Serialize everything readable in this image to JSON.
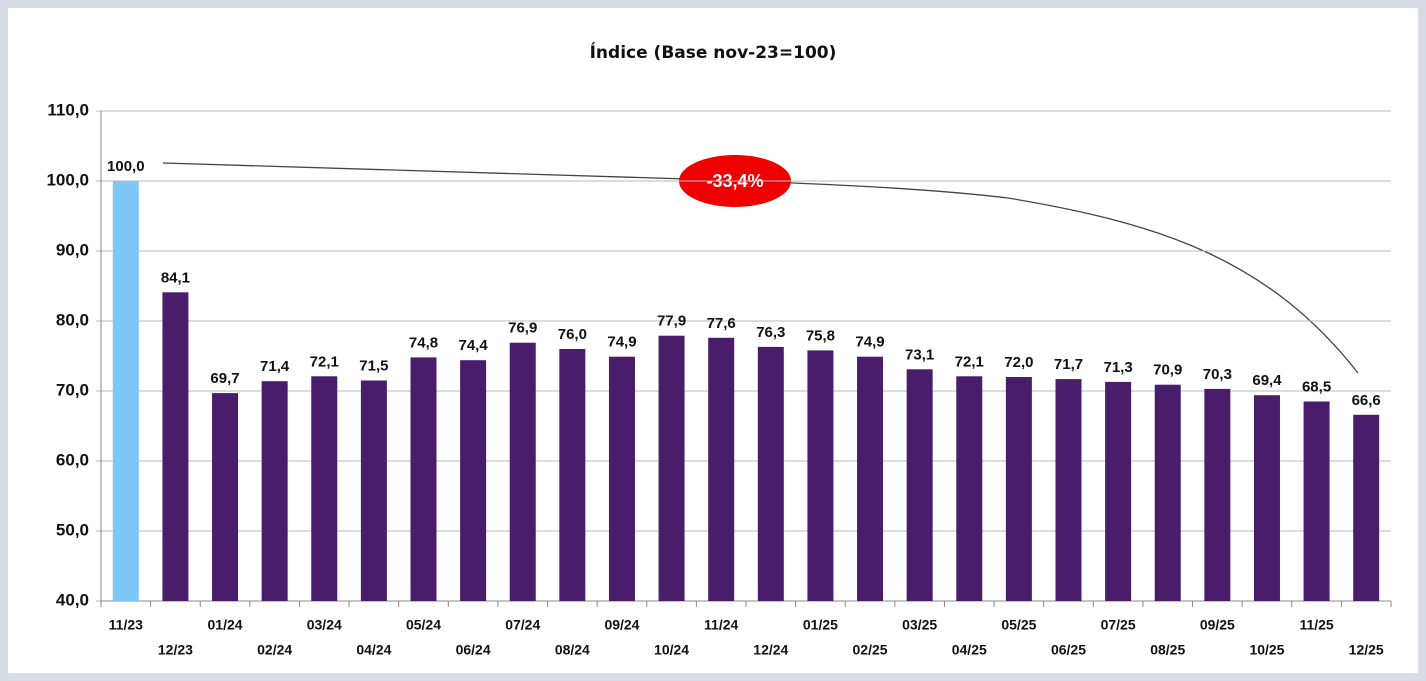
{
  "chart_data": {
    "type": "bar",
    "title": "Índice (Base nov-23=100)",
    "categories": [
      "11/23",
      "12/23",
      "01/24",
      "02/24",
      "03/24",
      "04/24",
      "05/24",
      "06/24",
      "07/24",
      "08/24",
      "09/24",
      "10/24",
      "11/24",
      "12/24",
      "01/25",
      "02/25",
      "03/25",
      "04/25",
      "05/25",
      "06/25",
      "07/25",
      "08/25",
      "09/25",
      "10/25",
      "11/25",
      "12/25"
    ],
    "values": [
      100.0,
      84.1,
      69.7,
      71.4,
      72.1,
      71.5,
      74.8,
      74.4,
      76.9,
      76.0,
      74.9,
      77.9,
      77.6,
      76.3,
      75.8,
      74.9,
      73.1,
      72.1,
      72.0,
      71.7,
      71.3,
      70.9,
      70.3,
      69.4,
      68.5,
      66.6
    ],
    "value_labels": [
      "100,0",
      "84,1",
      "69,7",
      "71,4",
      "72,1",
      "71,5",
      "74,8",
      "74,4",
      "76,9",
      "76,0",
      "74,9",
      "77,9",
      "77,6",
      "76,3",
      "75,8",
      "74,9",
      "73,1",
      "72,1",
      "72,0",
      "71,7",
      "71,3",
      "70,9",
      "70,3",
      "69,4",
      "68,5",
      "66,6"
    ],
    "colors": [
      "#7fc7f7",
      "#4a1d6b",
      "#4a1d6b",
      "#4a1d6b",
      "#4a1d6b",
      "#4a1d6b",
      "#4a1d6b",
      "#4a1d6b",
      "#4a1d6b",
      "#4a1d6b",
      "#4a1d6b",
      "#4a1d6b",
      "#4a1d6b",
      "#4a1d6b",
      "#4a1d6b",
      "#4a1d6b",
      "#4a1d6b",
      "#4a1d6b",
      "#4a1d6b",
      "#4a1d6b",
      "#4a1d6b",
      "#4a1d6b",
      "#4a1d6b",
      "#4a1d6b",
      "#4a1d6b",
      "#4a1d6b"
    ],
    "ylim": [
      40,
      110
    ],
    "yticks": [
      {
        "value": 40,
        "label": "40,0"
      },
      {
        "value": 50,
        "label": "50,0"
      },
      {
        "value": 60,
        "label": "60,0"
      },
      {
        "value": 70,
        "label": "70,0"
      },
      {
        "value": 80,
        "label": "80,0"
      },
      {
        "value": 90,
        "label": "90,0"
      },
      {
        "value": 100,
        "label": "100,0"
      },
      {
        "value": 110,
        "label": "110,0"
      }
    ],
    "grid": true,
    "annotation": "-33,4%"
  }
}
